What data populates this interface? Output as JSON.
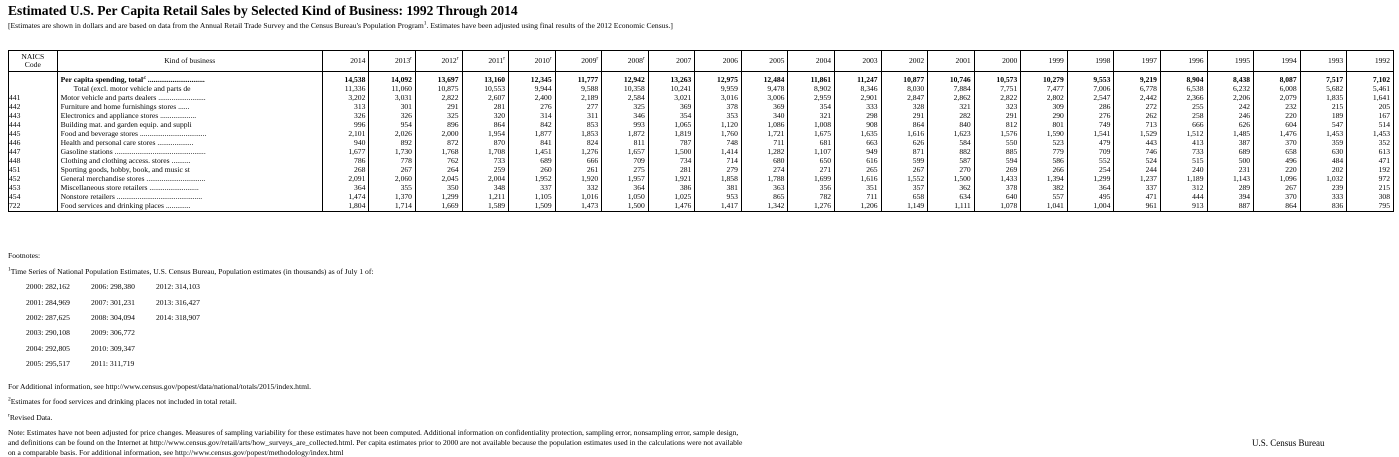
{
  "title": "Estimated U.S. Per Capita Retail Sales by Selected Kind of Business: 1992 Through 2014",
  "subtitle_pre": "[Estimates are shown in dollars and are based on data from the Annual Retail Trade Survey and the Census Bureau's Population Program",
  "subtitle_sup": "1",
  "subtitle_post": ". Estimates have been adjusted using final results of the 2012 Economic Census.]",
  "table": {
    "code_header_1": "NAICS",
    "code_header_2": "Code",
    "kind_header": "Kind of business",
    "years": [
      "2014",
      "2013",
      "2012",
      "2011",
      "2010",
      "2009",
      "2008",
      "2007",
      "2006",
      "2005",
      "2004",
      "2003",
      "2002",
      "2001",
      "2000",
      "1999",
      "1998",
      "1997",
      "1996",
      "1995",
      "1994",
      "1993",
      "1992"
    ],
    "year_marks": [
      "",
      "r",
      "r",
      "r",
      "r",
      "r",
      "r",
      "",
      "",
      "",
      "",
      "",
      "",
      "",
      "",
      "",
      "",
      "",
      "",
      "",
      "",
      "",
      ""
    ],
    "rows": [
      {
        "code": "",
        "label": "Per capita spending, total",
        "label_sup": "2",
        "dots": " ..............................",
        "values": [
          "14,538",
          "14,092",
          "13,697",
          "13,160",
          "12,345",
          "11,777",
          "12,942",
          "13,263",
          "12,975",
          "12,484",
          "11,861",
          "11,247",
          "10,877",
          "10,746",
          "10,573",
          "10,279",
          "9,553",
          "9,219",
          "8,904",
          "8,438",
          "8,087",
          "7,517",
          "7,102"
        ]
      },
      {
        "code": "",
        "label": "Total (excl. motor vehicle and parts de",
        "label_sup": "",
        "dots": "",
        "values": [
          "11,336",
          "11,060",
          "10,875",
          "10,553",
          "9,944",
          "9,588",
          "10,358",
          "10,241",
          "9,959",
          "9,478",
          "8,902",
          "8,346",
          "8,030",
          "7,884",
          "7,751",
          "7,477",
          "7,006",
          "6,778",
          "6,538",
          "6,232",
          "6,008",
          "5,682",
          "5,461"
        ]
      },
      {
        "code": "441",
        "label": "Motor vehicle and parts dealers",
        "label_sup": "",
        "dots": " .........................",
        "values": [
          "3,202",
          "3,031",
          "2,822",
          "2,607",
          "2,400",
          "2,189",
          "2,584",
          "3,021",
          "3,016",
          "3,006",
          "2,959",
          "2,901",
          "2,847",
          "2,862",
          "2,822",
          "2,802",
          "2,547",
          "2,442",
          "2,366",
          "2,206",
          "2,079",
          "1,835",
          "1,641"
        ]
      },
      {
        "code": "442",
        "label": "Furniture and home furnishings stores",
        "label_sup": "",
        "dots": " ......",
        "values": [
          "313",
          "301",
          "291",
          "281",
          "276",
          "277",
          "325",
          "369",
          "378",
          "369",
          "354",
          "333",
          "328",
          "321",
          "323",
          "309",
          "286",
          "272",
          "255",
          "242",
          "232",
          "215",
          "205"
        ]
      },
      {
        "code": "443",
        "label": "Electronics and appliance stores",
        "label_sup": "",
        "dots": " ...................",
        "values": [
          "326",
          "326",
          "325",
          "320",
          "314",
          "311",
          "346",
          "354",
          "353",
          "340",
          "321",
          "298",
          "291",
          "282",
          "291",
          "290",
          "276",
          "262",
          "258",
          "246",
          "220",
          "189",
          "167"
        ]
      },
      {
        "code": "444",
        "label": "Building mat. and garden equip. and suppli",
        "label_sup": "",
        "dots": "",
        "values": [
          "996",
          "954",
          "896",
          "864",
          "842",
          "853",
          "993",
          "1,065",
          "1,120",
          "1,086",
          "1,008",
          "908",
          "864",
          "840",
          "812",
          "801",
          "749",
          "713",
          "666",
          "626",
          "604",
          "547",
          "514"
        ]
      },
      {
        "code": "445",
        "label": "Food and beverage stores",
        "label_sup": "",
        "dots": " ...................................",
        "values": [
          "2,101",
          "2,026",
          "2,000",
          "1,954",
          "1,877",
          "1,853",
          "1,872",
          "1,819",
          "1,760",
          "1,721",
          "1,675",
          "1,635",
          "1,616",
          "1,623",
          "1,576",
          "1,590",
          "1,541",
          "1,529",
          "1,512",
          "1,485",
          "1,476",
          "1,453",
          "1,453"
        ]
      },
      {
        "code": "446",
        "label": "Health and personal care stores",
        "label_sup": "",
        "dots": " ...................",
        "values": [
          "940",
          "892",
          "872",
          "870",
          "841",
          "824",
          "811",
          "787",
          "748",
          "711",
          "681",
          "663",
          "626",
          "584",
          "550",
          "523",
          "479",
          "443",
          "413",
          "387",
          "370",
          "359",
          "352"
        ]
      },
      {
        "code": "447",
        "label": "Gasoline stations",
        "label_sup": "",
        "dots": " ................................................",
        "values": [
          "1,677",
          "1,730",
          "1,768",
          "1,708",
          "1,451",
          "1,276",
          "1,657",
          "1,500",
          "1,414",
          "1,282",
          "1,107",
          "949",
          "871",
          "882",
          "885",
          "779",
          "709",
          "746",
          "733",
          "689",
          "658",
          "630",
          "613"
        ]
      },
      {
        "code": "448",
        "label": "Clothing and clothing access. stores",
        "label_sup": "",
        "dots": " ..........",
        "values": [
          "786",
          "778",
          "762",
          "733",
          "689",
          "666",
          "709",
          "734",
          "714",
          "680",
          "650",
          "616",
          "599",
          "587",
          "594",
          "586",
          "552",
          "524",
          "515",
          "500",
          "496",
          "484",
          "471"
        ]
      },
      {
        "code": "451",
        "label": "Sporting goods, hobby, book, and music st",
        "label_sup": "",
        "dots": "",
        "values": [
          "268",
          "267",
          "264",
          "259",
          "260",
          "261",
          "275",
          "281",
          "279",
          "274",
          "271",
          "265",
          "267",
          "270",
          "269",
          "266",
          "254",
          "244",
          "240",
          "231",
          "220",
          "202",
          "192"
        ]
      },
      {
        "code": "452",
        "label": "General merchandise stores",
        "label_sup": "",
        "dots": " ...............................",
        "values": [
          "2,091",
          "2,060",
          "2,045",
          "2,004",
          "1,952",
          "1,920",
          "1,957",
          "1,921",
          "1,858",
          "1,788",
          "1,699",
          "1,616",
          "1,552",
          "1,500",
          "1,433",
          "1,394",
          "1,299",
          "1,237",
          "1,189",
          "1,143",
          "1,096",
          "1,032",
          "972"
        ]
      },
      {
        "code": "453",
        "label": "Miscellaneous store retailers",
        "label_sup": "",
        "dots": " ..........................",
        "values": [
          "364",
          "355",
          "350",
          "348",
          "337",
          "332",
          "364",
          "386",
          "381",
          "363",
          "356",
          "351",
          "357",
          "362",
          "378",
          "382",
          "364",
          "337",
          "312",
          "289",
          "267",
          "239",
          "215"
        ]
      },
      {
        "code": "454",
        "label": "Nonstore retailers",
        "label_sup": "",
        "dots": " .............................................",
        "values": [
          "1,474",
          "1,370",
          "1,299",
          "1,211",
          "1,105",
          "1,016",
          "1,050",
          "1,025",
          "953",
          "865",
          "782",
          "711",
          "658",
          "634",
          "640",
          "557",
          "495",
          "471",
          "444",
          "394",
          "370",
          "333",
          "308"
        ]
      },
      {
        "code": "722",
        "label": "Food services and drinking places",
        "label_sup": "",
        "dots": " .............",
        "values": [
          "1,804",
          "1,714",
          "1,669",
          "1,589",
          "1,509",
          "1,473",
          "1,500",
          "1,476",
          "1,417",
          "1,342",
          "1,276",
          "1,206",
          "1,149",
          "1,111",
          "1,078",
          "1,041",
          "1,004",
          "961",
          "913",
          "887",
          "864",
          "836",
          "795"
        ]
      }
    ]
  },
  "footnotes": {
    "heading": "Footnotes:",
    "fn1_sup": "1",
    "fn1_text": "Time Series of National Population Estimates, U.S. Census Bureau, Population estimates (in thousands) as of July 1 of:",
    "population_rows": [
      [
        "2000:  282,162",
        "2006:  298,380",
        "2012:  314,103"
      ],
      [
        "2001:  284,969",
        "2007:  301,231",
        "2013:  316,427"
      ],
      [
        "2002:  287,625",
        "2008:  304,094",
        "2014:  318,907"
      ],
      [
        "2003:  290,108",
        "2009:  306,772",
        ""
      ],
      [
        "2004:  292,805",
        "2010:  309,347",
        ""
      ],
      [
        "2005:  295,517",
        "2011:  311,719",
        ""
      ]
    ],
    "additional_info": " For Additional information, see http://www.census.gov/popest/data/national/totals/2015/index.html.",
    "fn2_sup": "2",
    "fn2_text": "Estimates for food services and drinking places not included in total retail.",
    "fnr_sup": "r",
    "fnr_text": "Revised Data.",
    "note": "Note:  Estimates have not been adjusted for price changes.  Measures of sampling variability for these estimates have not been computed.  Additional information on confidentiality protection, sampling error, nonsampling error, sample design, and definitions can be found on the Internet at http://www.census.gov/retail/arts/how_surveys_are_collected.html. Per capita estimates prior to 2000 are not available because the population estimates used in the calculations were not available on a comparable basis. For additional information, see http://www.census.gov/popest/methodology/index.html"
  },
  "source": "U.S.  Census Bureau"
}
